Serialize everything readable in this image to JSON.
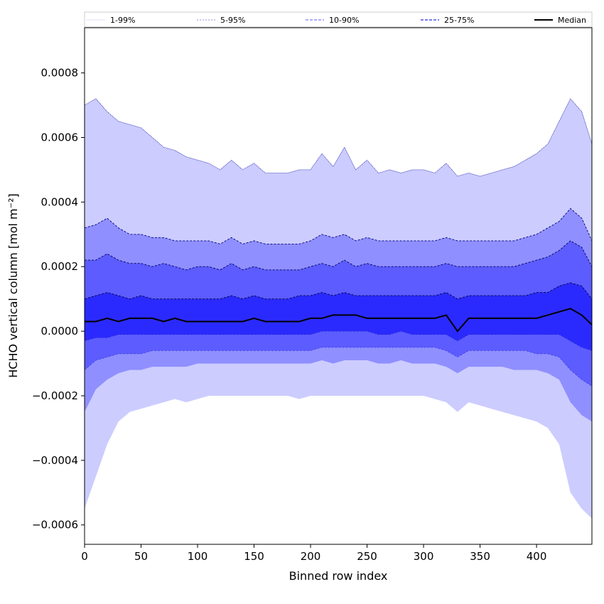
{
  "chart_data": {
    "type": "area",
    "title": "",
    "xlabel": "Binned row index",
    "ylabel": "HCHO vertical column [mol m⁻²]",
    "xlim": [
      0,
      449
    ],
    "ylim": [
      -0.00066,
      0.00094
    ],
    "grid": false,
    "x_ticks": [
      0,
      50,
      100,
      150,
      200,
      250,
      300,
      350,
      400
    ],
    "y_ticks": [
      -0.0006,
      -0.0004,
      -0.0002,
      0.0,
      0.0002,
      0.0004,
      0.0006,
      0.0008
    ],
    "y_tick_labels": [
      "−0.0006",
      "−0.0004",
      "−0.0002",
      "0.0000",
      "0.0002",
      "0.0004",
      "0.0006",
      "0.0008"
    ],
    "legend_position": "top",
    "legend": [
      {
        "label": "1-99%",
        "color": "#ccccff",
        "style": "dotted"
      },
      {
        "label": "5-95%",
        "color": "#9999ff",
        "style": "dashed"
      },
      {
        "label": "10-90%",
        "color": "#6666ff",
        "style": "dashed"
      },
      {
        "label": "25-75%",
        "color": "#3333ff",
        "style": "dashed"
      },
      {
        "label": "Median",
        "color": "#000000",
        "style": "solid"
      }
    ],
    "x": [
      0,
      10,
      20,
      30,
      40,
      50,
      60,
      70,
      80,
      90,
      100,
      110,
      120,
      130,
      140,
      150,
      160,
      170,
      180,
      190,
      200,
      210,
      220,
      230,
      240,
      250,
      260,
      270,
      280,
      290,
      300,
      310,
      320,
      330,
      340,
      350,
      360,
      370,
      380,
      390,
      400,
      410,
      420,
      430,
      440,
      449
    ],
    "series": [
      {
        "name": "1-99% low",
        "values": [
          -0.00055,
          -0.00045,
          -0.00035,
          -0.00028,
          -0.00025,
          -0.00024,
          -0.00023,
          -0.00022,
          -0.00021,
          -0.00022,
          -0.00021,
          -0.0002,
          -0.0002,
          -0.0002,
          -0.0002,
          -0.0002,
          -0.0002,
          -0.0002,
          -0.0002,
          -0.00021,
          -0.0002,
          -0.0002,
          -0.0002,
          -0.0002,
          -0.0002,
          -0.0002,
          -0.0002,
          -0.0002,
          -0.0002,
          -0.0002,
          -0.0002,
          -0.00021,
          -0.00022,
          -0.00025,
          -0.00022,
          -0.00023,
          -0.00024,
          -0.00025,
          -0.00026,
          -0.00027,
          -0.00028,
          -0.0003,
          -0.00035,
          -0.0005,
          -0.00055,
          -0.00058
        ]
      },
      {
        "name": "5-95% low",
        "values": [
          -0.00025,
          -0.00018,
          -0.00015,
          -0.00013,
          -0.00012,
          -0.00012,
          -0.00011,
          -0.00011,
          -0.00011,
          -0.00011,
          -0.0001,
          -0.0001,
          -0.0001,
          -0.0001,
          -0.0001,
          -0.0001,
          -0.0001,
          -0.0001,
          -0.0001,
          -0.0001,
          -0.0001,
          -9e-05,
          -0.0001,
          -9e-05,
          -9e-05,
          -9e-05,
          -0.0001,
          -0.0001,
          -9e-05,
          -0.0001,
          -0.0001,
          -0.0001,
          -0.00011,
          -0.00013,
          -0.00011,
          -0.00011,
          -0.00011,
          -0.00011,
          -0.00012,
          -0.00012,
          -0.00012,
          -0.00013,
          -0.00015,
          -0.00022,
          -0.00026,
          -0.00028
        ]
      },
      {
        "name": "10-90% low",
        "values": [
          -0.00012,
          -9e-05,
          -8e-05,
          -7e-05,
          -7e-05,
          -7e-05,
          -6e-05,
          -6e-05,
          -6e-05,
          -6e-05,
          -6e-05,
          -6e-05,
          -6e-05,
          -6e-05,
          -6e-05,
          -6e-05,
          -6e-05,
          -6e-05,
          -6e-05,
          -6e-05,
          -6e-05,
          -5e-05,
          -5e-05,
          -5e-05,
          -5e-05,
          -5e-05,
          -5e-05,
          -5e-05,
          -5e-05,
          -5e-05,
          -5e-05,
          -5e-05,
          -6e-05,
          -8e-05,
          -6e-05,
          -6e-05,
          -6e-05,
          -6e-05,
          -6e-05,
          -6e-05,
          -7e-05,
          -7e-05,
          -8e-05,
          -0.00012,
          -0.00015,
          -0.00017
        ]
      },
      {
        "name": "25-75% low",
        "values": [
          -3e-05,
          -2e-05,
          -2e-05,
          -1e-05,
          -1e-05,
          -1e-05,
          -1e-05,
          -1e-05,
          -1e-05,
          -1e-05,
          -1e-05,
          -1e-05,
          -1e-05,
          -1e-05,
          -1e-05,
          -1e-05,
          -1e-05,
          -1e-05,
          -1e-05,
          -1e-05,
          -1e-05,
          0.0,
          0.0,
          0.0,
          0.0,
          0.0,
          -1e-05,
          -1e-05,
          0.0,
          -1e-05,
          -1e-05,
          -1e-05,
          -1e-05,
          -3e-05,
          -1e-05,
          -1e-05,
          -1e-05,
          -1e-05,
          -1e-05,
          -1e-05,
          -1e-05,
          -1e-05,
          -1e-05,
          -3e-05,
          -5e-05,
          -6e-05
        ]
      },
      {
        "name": "Median",
        "values": [
          3e-05,
          3e-05,
          4e-05,
          3e-05,
          4e-05,
          4e-05,
          4e-05,
          3e-05,
          4e-05,
          3e-05,
          3e-05,
          3e-05,
          3e-05,
          3e-05,
          3e-05,
          4e-05,
          3e-05,
          3e-05,
          3e-05,
          3e-05,
          4e-05,
          4e-05,
          5e-05,
          5e-05,
          5e-05,
          4e-05,
          4e-05,
          4e-05,
          4e-05,
          4e-05,
          4e-05,
          4e-05,
          5e-05,
          0.0,
          4e-05,
          4e-05,
          4e-05,
          4e-05,
          4e-05,
          4e-05,
          4e-05,
          5e-05,
          6e-05,
          7e-05,
          5e-05,
          2e-05
        ]
      },
      {
        "name": "25-75% high",
        "values": [
          0.0001,
          0.00011,
          0.00012,
          0.00011,
          0.0001,
          0.00011,
          0.0001,
          0.0001,
          0.0001,
          0.0001,
          0.0001,
          0.0001,
          0.0001,
          0.00011,
          0.0001,
          0.00011,
          0.0001,
          0.0001,
          0.0001,
          0.00011,
          0.00011,
          0.00012,
          0.00011,
          0.00012,
          0.00011,
          0.00011,
          0.00011,
          0.00011,
          0.00011,
          0.00011,
          0.00011,
          0.00011,
          0.00012,
          0.0001,
          0.00011,
          0.00011,
          0.00011,
          0.00011,
          0.00011,
          0.00011,
          0.00012,
          0.00012,
          0.00014,
          0.00015,
          0.00014,
          0.0001
        ]
      },
      {
        "name": "10-90% high",
        "values": [
          0.00022,
          0.00022,
          0.00024,
          0.00022,
          0.00021,
          0.00021,
          0.0002,
          0.00021,
          0.0002,
          0.00019,
          0.0002,
          0.0002,
          0.00019,
          0.00021,
          0.00019,
          0.0002,
          0.00019,
          0.00019,
          0.00019,
          0.00019,
          0.0002,
          0.00021,
          0.0002,
          0.00022,
          0.0002,
          0.00021,
          0.0002,
          0.0002,
          0.0002,
          0.0002,
          0.0002,
          0.0002,
          0.00021,
          0.0002,
          0.0002,
          0.0002,
          0.0002,
          0.0002,
          0.0002,
          0.00021,
          0.00022,
          0.00023,
          0.00025,
          0.00028,
          0.00026,
          0.0002
        ]
      },
      {
        "name": "5-95% high",
        "values": [
          0.00032,
          0.00033,
          0.00035,
          0.00032,
          0.0003,
          0.0003,
          0.00029,
          0.00029,
          0.00028,
          0.00028,
          0.00028,
          0.00028,
          0.00027,
          0.00029,
          0.00027,
          0.00028,
          0.00027,
          0.00027,
          0.00027,
          0.00027,
          0.00028,
          0.0003,
          0.00029,
          0.0003,
          0.00028,
          0.00029,
          0.00028,
          0.00028,
          0.00028,
          0.00028,
          0.00028,
          0.00028,
          0.00029,
          0.00028,
          0.00028,
          0.00028,
          0.00028,
          0.00028,
          0.00028,
          0.00029,
          0.0003,
          0.00032,
          0.00034,
          0.00038,
          0.00035,
          0.00028
        ]
      },
      {
        "name": "1-99% high",
        "values": [
          0.0007,
          0.00072,
          0.00068,
          0.00065,
          0.00064,
          0.00063,
          0.0006,
          0.00057,
          0.00056,
          0.00054,
          0.00053,
          0.00052,
          0.0005,
          0.00053,
          0.0005,
          0.00052,
          0.00049,
          0.00049,
          0.00049,
          0.0005,
          0.0005,
          0.00055,
          0.00051,
          0.00057,
          0.0005,
          0.00053,
          0.00049,
          0.0005,
          0.00049,
          0.0005,
          0.0005,
          0.00049,
          0.00052,
          0.00048,
          0.00049,
          0.00048,
          0.00049,
          0.0005,
          0.00051,
          0.00053,
          0.00055,
          0.00058,
          0.00065,
          0.00072,
          0.00068,
          0.00058
        ]
      }
    ]
  }
}
